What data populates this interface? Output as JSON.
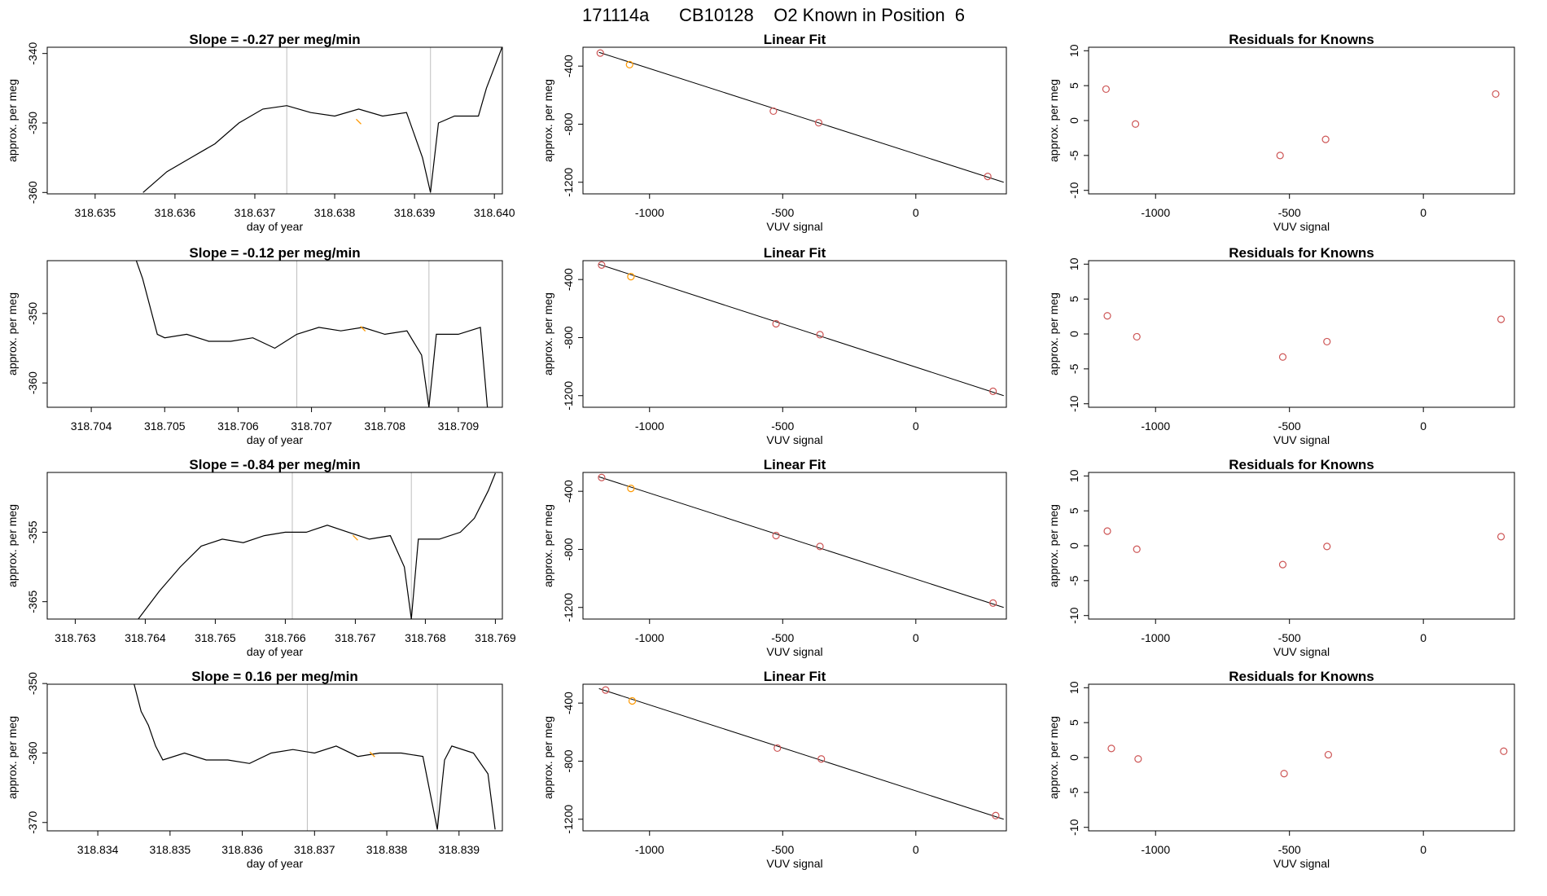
{
  "figure": {
    "title": "171114a      CB10128    O2 Known in Position  6",
    "colors": {
      "trace": "#000000",
      "marker": "#FF9900",
      "points": "#CD5555",
      "vline": "#BEBEBE",
      "frame": "#000000"
    }
  },
  "chart_data": [
    {
      "type": "line",
      "row": 1,
      "title": "Slope =  -0.27  per meg/min",
      "xlabel": "day of year",
      "ylabel": "approx. per meg",
      "xlim": [
        318.6344,
        318.6401
      ],
      "ylim": [
        -360.2,
        -339.1
      ],
      "xticks": [
        318.635,
        318.636,
        318.637,
        318.638,
        318.639,
        318.64
      ],
      "yticks": [
        -340,
        -350,
        -360
      ],
      "vlines": [
        318.6374,
        318.6392
      ],
      "highlight_point": [
        318.6383,
        -349.8
      ],
      "x": [
        318.6356,
        318.6359,
        318.6362,
        318.6365,
        318.6368,
        318.6371,
        318.6374,
        318.6377,
        318.638,
        318.6383,
        318.6386,
        318.6389,
        318.6391,
        318.6392,
        318.6393,
        318.6395,
        318.6398,
        318.6399,
        318.64,
        318.6401
      ],
      "y": [
        -360,
        -357,
        -355,
        -353,
        -350,
        -348,
        -347.5,
        -348.5,
        -349,
        -348,
        -349,
        -348.5,
        -355,
        -360,
        -350,
        -349,
        -349,
        -345,
        -342,
        -339
      ]
    },
    {
      "type": "scatter",
      "row": 1,
      "title": "Linear Fit",
      "xlabel": "VUV signal",
      "ylabel": "approx. per meg",
      "xlim": [
        -1250,
        340
      ],
      "ylim": [
        -1280,
        -270
      ],
      "xticks": [
        -1000,
        -500,
        0
      ],
      "yticks": [
        -400,
        -800,
        -1200
      ],
      "x": [
        -1185,
        -1075,
        -535,
        -365,
        270
      ],
      "y": [
        -310,
        -390,
        -710,
        -790,
        -1160
      ],
      "highlight_index": 1,
      "fit_line": [
        [
          -1190,
          -305
        ],
        [
          330,
          -1200
        ]
      ]
    },
    {
      "type": "scatter",
      "row": 1,
      "title": "Residuals for Knowns",
      "xlabel": "VUV signal",
      "ylabel": "approx. per meg",
      "xlim": [
        -1250,
        340
      ],
      "ylim": [
        -10.5,
        10.5
      ],
      "xticks": [
        -1000,
        -500,
        0
      ],
      "yticks": [
        10,
        5,
        0,
        -5,
        -10
      ],
      "x": [
        -1185,
        -1075,
        -535,
        -365,
        270
      ],
      "y": [
        4.5,
        -0.5,
        -5,
        -2.7,
        3.8
      ]
    },
    {
      "type": "line",
      "row": 2,
      "title": "Slope =  -0.12  per meg/min",
      "xlabel": "day of year",
      "ylabel": "approx. per meg",
      "xlim": [
        318.7034,
        318.7096
      ],
      "ylim": [
        -363.5,
        -342.4
      ],
      "xticks": [
        318.704,
        318.705,
        318.706,
        318.707,
        318.708,
        318.709
      ],
      "yticks": [
        -350,
        -360
      ],
      "vlines": [
        318.7068,
        318.7086
      ],
      "highlight_point": [
        318.7077,
        -352.2
      ],
      "x": [
        318.7046,
        318.7047,
        318.7048,
        318.7049,
        318.705,
        318.7053,
        318.7056,
        318.7059,
        318.7062,
        318.7065,
        318.7068,
        318.7071,
        318.7074,
        318.7077,
        318.708,
        318.7083,
        318.7085,
        318.7086,
        318.7087,
        318.709,
        318.7093,
        318.7094
      ],
      "y": [
        -342,
        -345,
        -349,
        -353,
        -353.5,
        -353,
        -354,
        -354,
        -353.5,
        -355,
        -353,
        -352,
        -352.5,
        -352,
        -353,
        -352.5,
        -356,
        -363.5,
        -353,
        -353,
        -352,
        -364
      ]
    },
    {
      "type": "scatter",
      "row": 2,
      "title": "Linear Fit",
      "xlabel": "VUV signal",
      "ylabel": "approx. per meg",
      "xlim": [
        -1250,
        340
      ],
      "ylim": [
        -1280,
        -270
      ],
      "xticks": [
        -1000,
        -500,
        0
      ],
      "yticks": [
        -400,
        -800,
        -1200
      ],
      "x": [
        -1180,
        -1070,
        -525,
        -360,
        290
      ],
      "y": [
        -300,
        -380,
        -705,
        -780,
        -1170
      ],
      "highlight_index": 1,
      "fit_line": [
        [
          -1190,
          -295
        ],
        [
          330,
          -1200
        ]
      ]
    },
    {
      "type": "scatter",
      "row": 2,
      "title": "Residuals for Knowns",
      "xlabel": "VUV signal",
      "ylabel": "approx. per meg",
      "xlim": [
        -1250,
        340
      ],
      "ylim": [
        -10.5,
        10.5
      ],
      "xticks": [
        -1000,
        -500,
        0
      ],
      "yticks": [
        10,
        5,
        0,
        -5,
        -10
      ],
      "x": [
        -1180,
        -1070,
        -525,
        -360,
        290
      ],
      "y": [
        2.6,
        -0.4,
        -3.3,
        -1.1,
        2.1
      ]
    },
    {
      "type": "line",
      "row": 3,
      "title": "Slope =  -0.84  per meg/min",
      "xlabel": "day of year",
      "ylabel": "approx. per meg",
      "xlim": [
        318.7626,
        318.7691
      ],
      "ylim": [
        -367.5,
        -346.4
      ],
      "xticks": [
        318.763,
        318.764,
        318.765,
        318.766,
        318.767,
        318.768,
        318.769
      ],
      "yticks": [
        -355,
        -365
      ],
      "vlines": [
        318.7661,
        318.7678
      ],
      "highlight_point": [
        318.767,
        -355.8
      ],
      "x": [
        318.7639,
        318.7642,
        318.7645,
        318.7648,
        318.7651,
        318.7654,
        318.7657,
        318.766,
        318.7663,
        318.7666,
        318.7669,
        318.7672,
        318.7675,
        318.7677,
        318.7678,
        318.7679,
        318.7682,
        318.7685,
        318.7687,
        318.7689,
        318.769
      ],
      "y": [
        -367.5,
        -363.5,
        -360,
        -357,
        -356,
        -356.5,
        -355.5,
        -355,
        -355,
        -354,
        -355,
        -356,
        -355.5,
        -360,
        -367.5,
        -356,
        -356,
        -355,
        -353,
        -349,
        -346.5
      ]
    },
    {
      "type": "scatter",
      "row": 3,
      "title": "Linear Fit",
      "xlabel": "VUV signal",
      "ylabel": "approx. per meg",
      "xlim": [
        -1250,
        340
      ],
      "ylim": [
        -1280,
        -270
      ],
      "xticks": [
        -1000,
        -500,
        0
      ],
      "yticks": [
        -400,
        -800,
        -1200
      ],
      "x": [
        -1180,
        -1070,
        -525,
        -360,
        290
      ],
      "y": [
        -305,
        -380,
        -705,
        -780,
        -1170
      ],
      "highlight_index": 1,
      "fit_line": [
        [
          -1190,
          -300
        ],
        [
          330,
          -1200
        ]
      ]
    },
    {
      "type": "scatter",
      "row": 3,
      "title": "Residuals for Knowns",
      "xlabel": "VUV signal",
      "ylabel": "approx. per meg",
      "xlim": [
        -1250,
        340
      ],
      "ylim": [
        -10.5,
        10.5
      ],
      "xticks": [
        -1000,
        -500,
        0
      ],
      "yticks": [
        10,
        5,
        0,
        -5,
        -10
      ],
      "x": [
        -1180,
        -1070,
        -525,
        -360,
        290
      ],
      "y": [
        2.1,
        -0.5,
        -2.7,
        -0.1,
        1.3
      ]
    },
    {
      "type": "line",
      "row": 4,
      "title": "Slope =  0.16  per meg/min",
      "xlabel": "day of year",
      "ylabel": "approx. per meg",
      "xlim": [
        318.8333,
        318.8396
      ],
      "ylim": [
        -371.2,
        -350.1
      ],
      "xticks": [
        318.834,
        318.835,
        318.836,
        318.837,
        318.838,
        318.839
      ],
      "yticks": [
        -350,
        -360,
        -370
      ],
      "vlines": [
        318.8369,
        318.8387
      ],
      "highlight_point": [
        318.8378,
        -360.2
      ],
      "x": [
        318.8345,
        318.8346,
        318.8347,
        318.8348,
        318.8349,
        318.8352,
        318.8355,
        318.8358,
        318.8361,
        318.8364,
        318.8367,
        318.837,
        318.8373,
        318.8376,
        318.8379,
        318.8382,
        318.8385,
        318.8387,
        318.8388,
        318.8389,
        318.8392,
        318.8394,
        318.8395
      ],
      "y": [
        -350,
        -354,
        -356,
        -359,
        -361,
        -360,
        -361,
        -361,
        -361.5,
        -360,
        -359.5,
        -360,
        -359,
        -360.5,
        -360,
        -360,
        -360.5,
        -371,
        -361,
        -359,
        -360,
        -363,
        -371
      ]
    },
    {
      "type": "scatter",
      "row": 4,
      "title": "Linear Fit",
      "xlabel": "VUV signal",
      "ylabel": "approx. per meg",
      "xlim": [
        -1250,
        340
      ],
      "ylim": [
        -1280,
        -270
      ],
      "xticks": [
        -1000,
        -500,
        0
      ],
      "yticks": [
        -400,
        -800,
        -1200
      ],
      "x": [
        -1165,
        -1065,
        -520,
        -355,
        300
      ],
      "y": [
        -310,
        -385,
        -710,
        -785,
        -1175
      ],
      "highlight_index": 1,
      "fit_line": [
        [
          -1190,
          -300
        ],
        [
          330,
          -1200
        ]
      ]
    },
    {
      "type": "scatter",
      "row": 4,
      "title": "Residuals for Knowns",
      "xlabel": "VUV signal",
      "ylabel": "approx. per meg",
      "xlim": [
        -1250,
        340
      ],
      "ylim": [
        -10.5,
        10.5
      ],
      "xticks": [
        -1000,
        -500,
        0
      ],
      "yticks": [
        10,
        5,
        0,
        -5,
        -10
      ],
      "x": [
        -1165,
        -1065,
        -520,
        -355,
        300
      ],
      "y": [
        1.3,
        -0.2,
        -2.3,
        0.4,
        0.9
      ]
    }
  ]
}
